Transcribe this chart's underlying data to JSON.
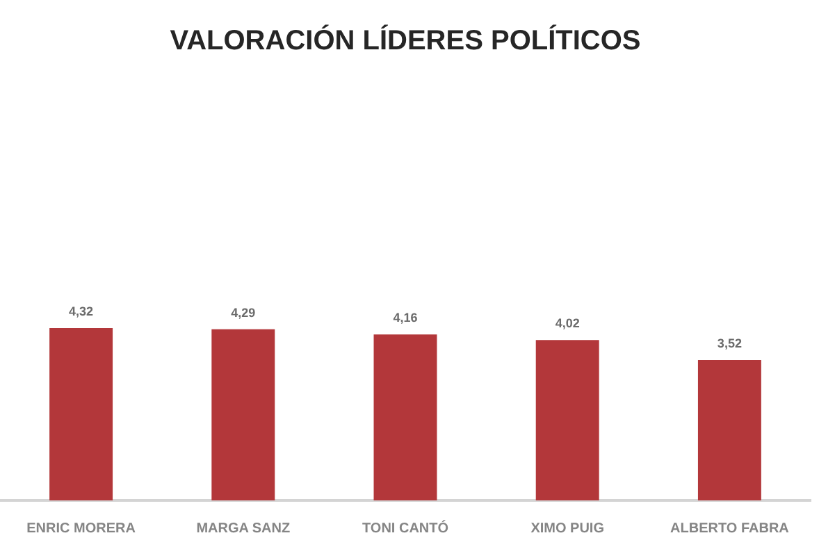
{
  "chart_data": {
    "type": "bar",
    "title": "VALORACIÓN LÍDERES POLÍTICOS",
    "categories": [
      "ENRIC MORERA",
      "MARGA SANZ",
      "TONI CANTÓ",
      "XIMO PUIG",
      "ALBERTO FABRA"
    ],
    "values": [
      4.32,
      4.29,
      4.16,
      4.02,
      3.52
    ],
    "color": "#b3373a",
    "value_labels": [
      "4,32",
      "4,29",
      "4,16",
      "4,02",
      "3,52"
    ]
  }
}
